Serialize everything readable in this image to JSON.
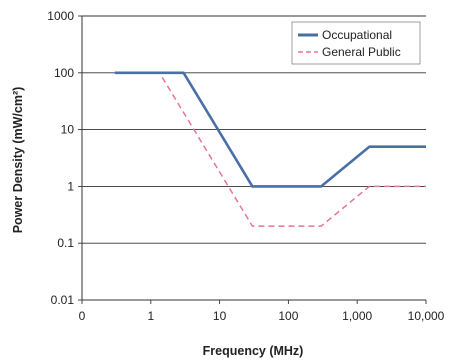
{
  "chart_data": {
    "type": "line",
    "title": "",
    "xlabel": "Frequency (MHz)",
    "ylabel": "Power Density (mW/cm²)",
    "x_scale": "log",
    "y_scale": "log",
    "xlim": [
      0.1,
      10000
    ],
    "ylim": [
      0.01,
      1000
    ],
    "x_tick_labels": [
      "0",
      "1",
      "10",
      "100",
      "1,000",
      "10,000"
    ],
    "y_tick_labels": [
      "0.01",
      "0.1",
      "1",
      "10",
      "100",
      "1000"
    ],
    "grid": "horizontal",
    "legend_position": "top-right",
    "series": [
      {
        "name": "Occupational",
        "color": "#4a6fa5",
        "style": "solid",
        "x": [
          0.3,
          3,
          30,
          300,
          1500,
          10000
        ],
        "y": [
          100,
          100,
          1,
          1,
          5,
          5
        ]
      },
      {
        "name": "General Public",
        "color": "#e8739a",
        "style": "dashed",
        "x": [
          0.3,
          1.34,
          30,
          300,
          1500,
          10000
        ],
        "y": [
          100,
          100,
          0.2,
          0.2,
          1,
          1
        ]
      }
    ]
  }
}
